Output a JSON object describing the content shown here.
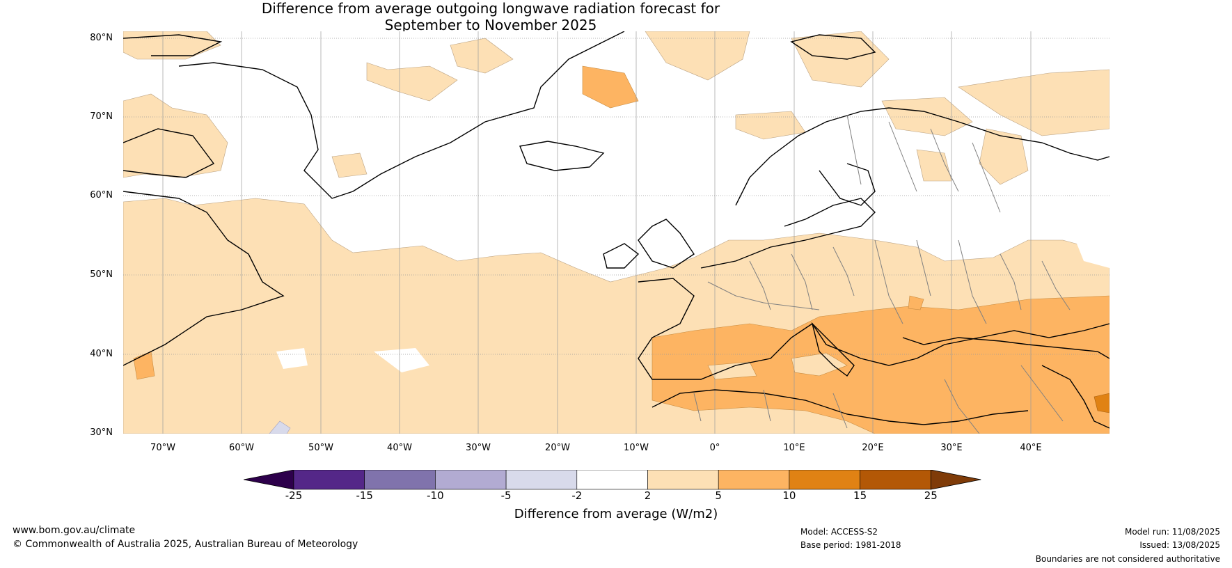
{
  "title": {
    "line1": "Difference from average outgoing longwave radiation forecast for",
    "line2": "September to November 2025"
  },
  "map": {
    "lat_labels": [
      "80°N",
      "70°N",
      "60°N",
      "50°N",
      "40°N",
      "30°N"
    ],
    "lon_labels": [
      "70°W",
      "60°W",
      "50°W",
      "40°W",
      "30°W",
      "20°W",
      "10°W",
      "0°",
      "10°E",
      "20°E",
      "30°E",
      "40°E"
    ],
    "colors": {
      "land_outline": "#000000",
      "borders": "#808080",
      "grid": "#9a9a9a",
      "light_orange": "#fde0b5",
      "medium_orange": "#fdb462",
      "dark_orange": "#e08214",
      "light_purple": "#d8daeb"
    }
  },
  "colorbar": {
    "ticks": [
      "-25",
      "-15",
      "-10",
      "-5",
      "-2",
      "2",
      "5",
      "10",
      "15",
      "25"
    ],
    "colors": [
      "#2d004b",
      "#542788",
      "#8073ac",
      "#b2abd2",
      "#d8daeb",
      "#ffffff",
      "#fde0b5",
      "#fdb462",
      "#e08214",
      "#b35806",
      "#7f3b08"
    ],
    "label": "Difference from average (W/m2)"
  },
  "footer": {
    "website": "www.bom.gov.au/climate",
    "copyright": "© Commonwealth of Australia 2025, Australian Bureau of Meteorology",
    "model": "Model: ACCESS-S2",
    "base_period": "Base period: 1981-2018",
    "model_run": "Model run: 11/08/2025",
    "issued": "Issued: 13/08/2025",
    "disclaimer": "Boundaries are not considered authoritative"
  }
}
